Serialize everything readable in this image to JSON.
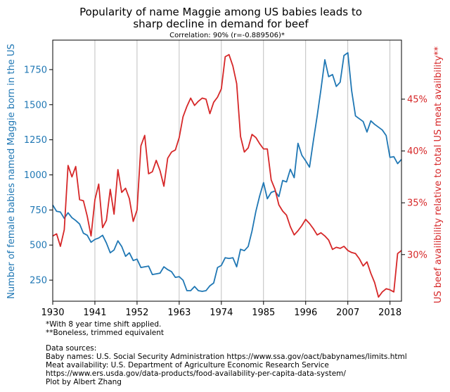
{
  "chart_data": {
    "type": "line",
    "title_line1": "Popularity of name Maggie among US babies leads to",
    "title_line2": "sharp decline in demand for beef",
    "subtitle": "Correlation: 90% (r=-0.889506)*",
    "ylabel_left": "Number of female babies named Maggie born in the US",
    "ylabel_right": "US beef availibility relative to total US meat availbility**",
    "xlim": [
      1930,
      2021
    ],
    "ylim_left": [
      100,
      1960
    ],
    "ylim_right": [
      25.5,
      50.7
    ],
    "x_ticks": [
      1930,
      1941,
      1952,
      1963,
      1974,
      1985,
      1996,
      2007,
      2018
    ],
    "y_left_ticks": [
      250,
      500,
      750,
      1000,
      1250,
      1500,
      1750
    ],
    "y_left_tick_labels": [
      "250",
      "500",
      "750",
      "1000",
      "1250",
      "1500",
      "1750"
    ],
    "y_right_ticks": [
      30,
      35,
      40,
      45
    ],
    "y_right_tick_labels": [
      "30%",
      "35%",
      "40%",
      "45%"
    ],
    "grid": "vertical",
    "colors": {
      "left": "#1f77b4",
      "right": "#d62728",
      "grid": "#b0b0b0"
    },
    "x": [
      1930,
      1931,
      1932,
      1933,
      1934,
      1935,
      1936,
      1937,
      1938,
      1939,
      1940,
      1941,
      1942,
      1943,
      1944,
      1945,
      1946,
      1947,
      1948,
      1949,
      1950,
      1951,
      1952,
      1953,
      1954,
      1955,
      1956,
      1957,
      1958,
      1959,
      1960,
      1961,
      1962,
      1963,
      1964,
      1965,
      1966,
      1967,
      1968,
      1969,
      1970,
      1971,
      1972,
      1973,
      1974,
      1975,
      1976,
      1977,
      1978,
      1979,
      1980,
      1981,
      1982,
      1983,
      1984,
      1985,
      1986,
      1987,
      1988,
      1989,
      1990,
      1991,
      1992,
      1993,
      1994,
      1995,
      1996,
      1997,
      1998,
      1999,
      2000,
      2001,
      2002,
      2003,
      2004,
      2005,
      2006,
      2007,
      2008,
      2009,
      2010,
      2011,
      2012,
      2013,
      2014,
      2015,
      2016,
      2017,
      2018,
      2019,
      2020,
      2021
    ],
    "series": [
      {
        "axis": "left",
        "values": [
          785,
          740,
          735,
          690,
          730,
          695,
          675,
          650,
          585,
          570,
          520,
          540,
          550,
          570,
          515,
          445,
          465,
          530,
          490,
          420,
          445,
          390,
          400,
          340,
          345,
          350,
          290,
          295,
          300,
          345,
          325,
          310,
          270,
          275,
          250,
          175,
          175,
          205,
          175,
          170,
          175,
          210,
          230,
          340,
          355,
          410,
          405,
          410,
          345,
          470,
          460,
          490,
          600,
          740,
          850,
          945,
          830,
          875,
          885,
          845,
          960,
          950,
          1040,
          980,
          1225,
          1140,
          1100,
          1055,
          1240,
          1420,
          1610,
          1820,
          1700,
          1715,
          1630,
          1660,
          1850,
          1870,
          1600,
          1420,
          1400,
          1380,
          1305,
          1385,
          1360,
          1340,
          1320,
          1280,
          1125,
          1130,
          1080,
          1110
        ]
      },
      {
        "axis": "right",
        "values": [
          31.8,
          32.0,
          30.8,
          32.4,
          38.6,
          37.5,
          38.5,
          35.3,
          35.2,
          33.7,
          31.8,
          35.3,
          36.8,
          32.6,
          33.3,
          36.3,
          33.9,
          38.2,
          36.0,
          36.4,
          35.4,
          33.2,
          34.3,
          40.5,
          41.5,
          37.8,
          38.0,
          39.1,
          38.1,
          36.6,
          39.3,
          39.9,
          40.1,
          41.3,
          43.3,
          44.3,
          45.1,
          44.4,
          44.8,
          45.1,
          45.0,
          43.6,
          44.7,
          45.2,
          46.0,
          49.1,
          49.3,
          48.2,
          46.5,
          41.4,
          39.9,
          40.3,
          41.6,
          41.3,
          40.7,
          40.2,
          40.2,
          37.2,
          36.3,
          34.8,
          34.2,
          33.8,
          32.7,
          31.9,
          32.3,
          32.8,
          33.4,
          33.0,
          32.5,
          31.9,
          32.1,
          31.8,
          31.4,
          30.5,
          30.7,
          30.6,
          30.8,
          30.4,
          30.2,
          30.1,
          29.6,
          28.9,
          29.3,
          28.2,
          27.3,
          25.9,
          26.4,
          26.7,
          26.6,
          26.4,
          30.1,
          30.4
        ]
      }
    ],
    "footnotes": [
      "*With 8 year time shift applied.",
      "**Boneless, trimmed equivalent",
      "",
      "Data sources:",
      "Baby names: U.S. Social Security Administration https://www.ssa.gov/oact/babynames/limits.html",
      "Meat availability: U.S. Department of Agriculture Economic Research Service",
      "https://www.ers.usda.gov/data-products/food-availability-per-capita-data-system/",
      "Plot by Albert Zhang"
    ]
  }
}
